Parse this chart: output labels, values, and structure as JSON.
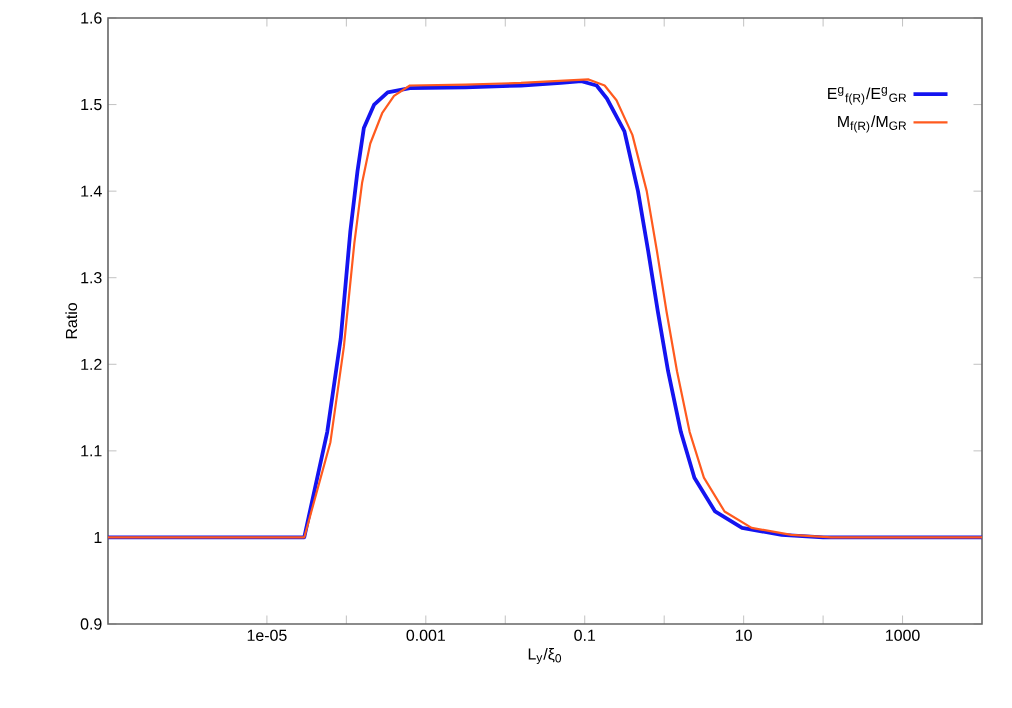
{
  "chart_data": {
    "type": "line",
    "xlabel": "L$_{y}$/ξ$_{0}$",
    "ylabel": "Ratio",
    "log": "x",
    "legend": "top right",
    "xlim": [
      1e-07,
      10000
    ],
    "ylim": [
      0.9,
      1.6
    ],
    "xticks": [
      1e-05,
      {
        "value": 0.0001,
        "label": null
      },
      0.001,
      {
        "value": 0.01,
        "label": null
      },
      0.1,
      {
        "value": 1,
        "label": null
      },
      10,
      {
        "value": 100,
        "label": null
      },
      1000
    ],
    "yticks": [
      0.9,
      1,
      1.1,
      1.2,
      1.3,
      1.4,
      1.5,
      1.6
    ],
    "series": [
      {
        "name": "E$^{g}$$_{f(R)}$/E$^{g}$$_{GR}$",
        "color": "#1414f0",
        "x": [
          1e-07,
          2.95e-05,
          5.75e-05,
          8.5e-05,
          0.000112,
          0.000138,
          0.000166,
          0.000224,
          0.000331,
          0.00063,
          0.00316,
          0.0158,
          0.05,
          0.091,
          0.141,
          0.19,
          0.316,
          0.468,
          0.631,
          0.832,
          1.12,
          1.62,
          2.4,
          4.37,
          9.55,
          30.2,
          100,
          10000
        ],
        "values": [
          1,
          1,
          1.122,
          1.23,
          1.353,
          1.423,
          1.473,
          1.5,
          1.514,
          1.519,
          1.52,
          1.522,
          1.525,
          1.527,
          1.522,
          1.507,
          1.469,
          1.4,
          1.33,
          1.261,
          1.192,
          1.122,
          1.069,
          1.03,
          1.011,
          1.003,
          1,
          1
        ]
      },
      {
        "name": "M$_{f(R)}$/M$_{GR}$",
        "color": "#ff5a1e",
        "x": [
          1e-07,
          2.95e-05,
          6.3e-05,
          9.3e-05,
          0.000126,
          0.000158,
          0.0002,
          0.000282,
          0.000398,
          0.00063,
          0.00316,
          0.0158,
          0.063,
          0.112,
          0.178,
          0.251,
          0.398,
          0.603,
          0.813,
          1.07,
          1.45,
          2.09,
          3.16,
          5.75,
          12.6,
          39.8,
          126,
          10000
        ],
        "values": [
          1,
          1,
          1.11,
          1.22,
          1.34,
          1.41,
          1.455,
          1.49,
          1.51,
          1.522,
          1.523,
          1.525,
          1.528,
          1.529,
          1.522,
          1.505,
          1.465,
          1.4,
          1.33,
          1.261,
          1.192,
          1.122,
          1.069,
          1.03,
          1.011,
          1.003,
          1,
          1
        ]
      }
    ]
  }
}
